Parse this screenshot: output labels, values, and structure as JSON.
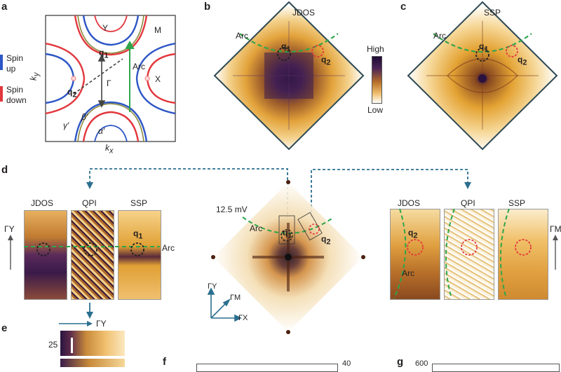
{
  "panels": {
    "a": "a",
    "b": "b",
    "c": "c",
    "d": "d",
    "e": "e",
    "f": "f",
    "g": "g"
  },
  "legend": {
    "spin_up_1": "Spin",
    "spin_up_2": "up",
    "spin_down_1": "Spin",
    "spin_down_2": "down",
    "spin_up_color": "#2d56c6",
    "spin_down_color": "#e2373d"
  },
  "panel_a": {
    "labels": {
      "Y": "Y",
      "M": "M",
      "X": "X",
      "Arc": "Arc",
      "Gamma": "Γ",
      "q1": "q",
      "q1_sub": "1",
      "q2": "q",
      "q2_sub": "2",
      "beta": "β′",
      "gamma_p": "γ′",
      "alpha": "α′",
      "ky": "k",
      "ky_sub": "y",
      "kx": "k",
      "kx_sub": "x"
    }
  },
  "panel_b": {
    "title": "JDOS",
    "arc": "Arc",
    "q1": "q",
    "q1_sub": "1",
    "q2": "q",
    "q2_sub": "2"
  },
  "panel_c": {
    "title": "SSP",
    "arc": "Arc",
    "q1": "q",
    "q1_sub": "1",
    "q2": "q",
    "q2_sub": "2"
  },
  "colorbar": {
    "high": "High",
    "low": "Low"
  },
  "panel_d": {
    "left": {
      "jdos": "JDOS",
      "qpi": "QPI",
      "ssp": "SSP",
      "gy": "ΓY",
      "arc": "Arc",
      "q1": "q",
      "q1_sub": "1"
    },
    "center": {
      "bias": "12.5 mV",
      "arc": "Arc",
      "q1": "q",
      "q1_sub": "1",
      "q2": "q",
      "q2_sub": "2",
      "gy": "ΓY",
      "gm": "ΓM",
      "gx": "ΓX"
    },
    "right": {
      "jdos": "JDOS",
      "qpi": "QPI",
      "ssp": "SSP",
      "gm": "ΓM",
      "arc": "Arc",
      "q2": "q",
      "q2_sub": "2"
    }
  },
  "panel_e": {
    "gy": "ΓY",
    "tick": "25"
  },
  "panel_f": {
    "tick": "40"
  },
  "panel_g": {
    "tick": "600"
  }
}
